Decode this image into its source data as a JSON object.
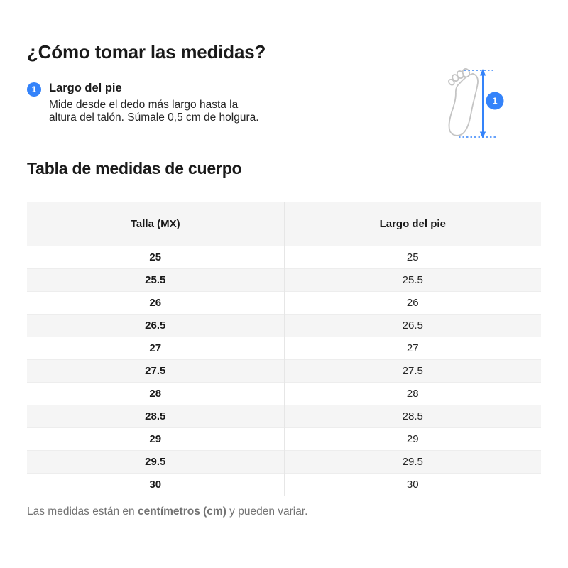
{
  "page": {
    "title": "¿Cómo tomar las medidas?",
    "section_title": "Tabla de medidas de cuerpo",
    "footnote": {
      "prefix": "Las medidas están en ",
      "bold": "centímetros (cm)",
      "suffix": " y pueden variar."
    }
  },
  "measurement": {
    "badge": "1",
    "label": "Largo del pie",
    "description": "Mide desde el dedo más largo hasta la altura del talón. Súmale 0,5 cm de holgura.",
    "diagram_badge": "1"
  },
  "table": {
    "headers": [
      "Talla (MX)",
      "Largo del pie"
    ],
    "rows": [
      [
        "25",
        "25"
      ],
      [
        "25.5",
        "25.5"
      ],
      [
        "26",
        "26"
      ],
      [
        "26.5",
        "26.5"
      ],
      [
        "27",
        "27"
      ],
      [
        "27.5",
        "27.5"
      ],
      [
        "28",
        "28"
      ],
      [
        "28.5",
        "28.5"
      ],
      [
        "29",
        "29"
      ],
      [
        "29.5",
        "29.5"
      ],
      [
        "30",
        "30"
      ]
    ]
  },
  "icons": {
    "diagram": "foot-measure-icon",
    "arrow": "measure-arrow-icon",
    "badge": "step-1-badge"
  },
  "colors": {
    "accent_blue": "#3483fa",
    "row_stripe": "#f5f5f5",
    "text_primary": "#1a1a1a",
    "text_muted": "#737373",
    "divider": "#e6e6e6",
    "foot_outline": "#c4c4c4"
  }
}
